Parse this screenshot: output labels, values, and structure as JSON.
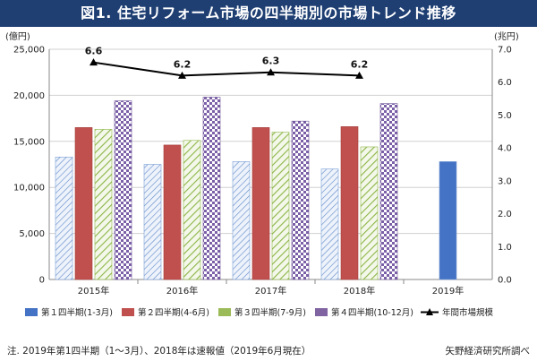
{
  "title": "図1. 住宅リフォーム市場の四半期別の市場トレンド推移",
  "footer": {
    "note": "注. 2019年第1四半期（1～3月）、2018年は速報値（2019年6月現在）",
    "source": "矢野経済研究所調べ"
  },
  "chart_data": {
    "type": "bar",
    "categories": [
      "2015年",
      "2016年",
      "2017年",
      "2018年",
      "2019年"
    ],
    "series": [
      {
        "name": "第１四半期(1-3月)",
        "values": [
          13300,
          12500,
          12800,
          12000,
          12800
        ],
        "color": "#4472c4",
        "pattern": "diag-blue"
      },
      {
        "name": "第２四半期(4-6月)",
        "values": [
          16500,
          14600,
          16500,
          16600,
          null
        ],
        "color": "#c0504d",
        "pattern": "solid"
      },
      {
        "name": "第３四半期(7-9月)",
        "values": [
          16300,
          15100,
          16000,
          14400,
          null
        ],
        "color": "#9bbb59",
        "pattern": "diag-green"
      },
      {
        "name": "第４四半期(10-12月)",
        "values": [
          19400,
          19800,
          17200,
          19100,
          null
        ],
        "color": "#8064a2",
        "pattern": "check-purple"
      }
    ],
    "line": {
      "name": "年間市場規模",
      "values": [
        6.6,
        6.2,
        6.3,
        6.2,
        null
      ],
      "labels": [
        "6.6",
        "6.2",
        "6.3",
        "6.2",
        ""
      ]
    },
    "left_axis": {
      "unit": "(億円)",
      "min": 0,
      "max": 25000,
      "ticks": [
        "0",
        "5,000",
        "10,000",
        "15,000",
        "20,000",
        "25,000"
      ]
    },
    "right_axis": {
      "unit": "(兆円)",
      "min": 0,
      "max": 7,
      "ticks": [
        "0.0",
        "1.0",
        "2.0",
        "3.0",
        "4.0",
        "5.0",
        "6.0",
        "7.0"
      ]
    },
    "grid": true,
    "legend_position": "bottom"
  }
}
